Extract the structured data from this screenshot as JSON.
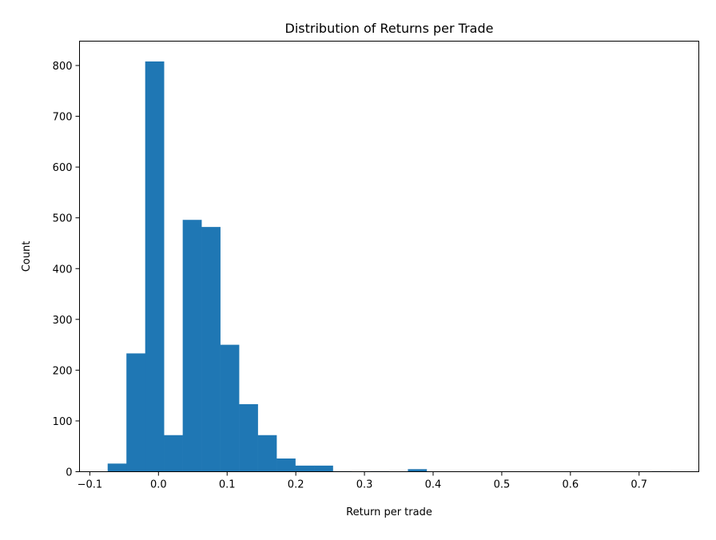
{
  "chart_data": {
    "type": "bar",
    "title": "Distribution of Returns per Trade",
    "xlabel": "Return per trade",
    "ylabel": "Count",
    "bin_start": -0.074,
    "bin_width": 0.02733,
    "values": [
      16,
      233,
      808,
      72,
      496,
      482,
      250,
      133,
      72,
      26,
      12,
      12,
      1,
      0,
      1,
      0,
      5,
      0,
      0,
      0,
      0,
      0,
      0,
      0,
      0,
      0,
      0,
      0,
      0,
      1
    ],
    "xlim": [
      -0.115,
      0.787
    ],
    "ylim": [
      0,
      848
    ],
    "xticks": [
      "−0.1",
      "0.0",
      "0.1",
      "0.2",
      "0.3",
      "0.4",
      "0.5",
      "0.6",
      "0.7"
    ],
    "xtick_values": [
      -0.1,
      0,
      0.1,
      0.2,
      0.3,
      0.4,
      0.5,
      0.6,
      0.7
    ],
    "yticks": [
      "0",
      "100",
      "200",
      "300",
      "400",
      "500",
      "600",
      "700",
      "800"
    ],
    "ytick_values": [
      0,
      100,
      200,
      300,
      400,
      500,
      600,
      700,
      800
    ],
    "bar_color": "#1f77b4",
    "grid": false,
    "legend": "none"
  }
}
